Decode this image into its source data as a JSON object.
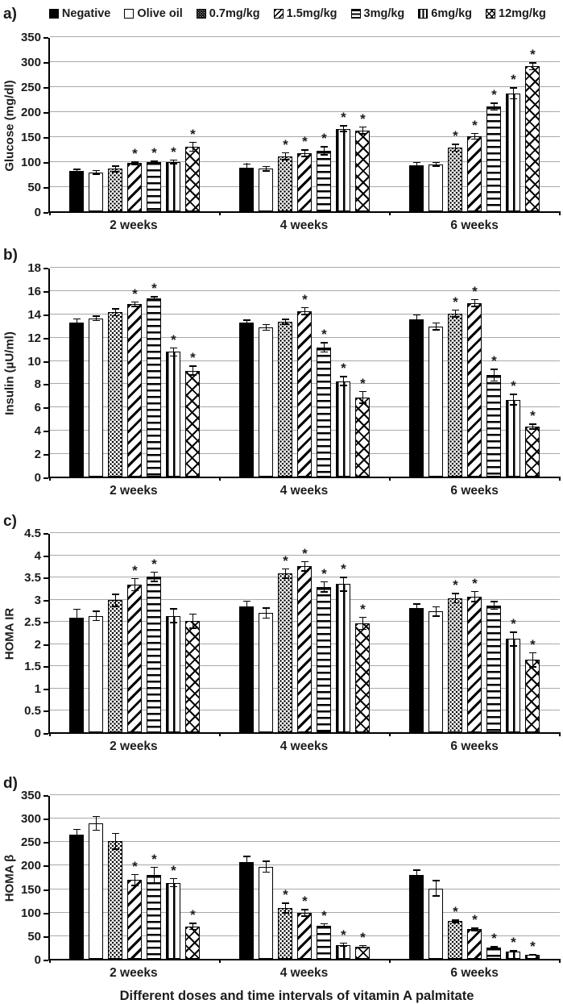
{
  "page": {
    "bottom_title": "Different doses and time intervals of vitamin A palmitate",
    "background": "#ffffff",
    "bar_color": "#000000",
    "gridline_color": "#a9a9a9",
    "sig_marker": "*"
  },
  "legend": {
    "items": [
      {
        "label": "Negative",
        "pattern": "solid"
      },
      {
        "label": "Olive oil",
        "pattern": "open"
      },
      {
        "label": "0.7mg/kg",
        "pattern": "dots"
      },
      {
        "label": "1.5mg/kg",
        "pattern": "diag"
      },
      {
        "label": "3mg/kg",
        "pattern": "hlines"
      },
      {
        "label": "6mg/kg",
        "pattern": "vlines"
      },
      {
        "label": "12mg/kg",
        "pattern": "cross"
      }
    ]
  },
  "chart_data": [
    {
      "panel": "a)",
      "type": "bar",
      "ylabel": "Glucose (mg/dl)",
      "ylim": [
        0,
        350
      ],
      "ytick_step": 50,
      "yticks": [
        "0",
        "50",
        "100",
        "150",
        "200",
        "250",
        "300",
        "350"
      ],
      "categories": [
        "2 weeks",
        "4 weeks",
        "6 weeks"
      ],
      "grid": true,
      "legend_position": "top",
      "series": [
        {
          "name": "Negative",
          "pattern": "solid",
          "values": [
            80,
            87,
            92
          ],
          "errors": [
            5,
            9,
            7
          ],
          "sig": [
            false,
            false,
            false
          ]
        },
        {
          "name": "Olive oil",
          "pattern": "open",
          "values": [
            78,
            85,
            94
          ],
          "errors": [
            5,
            6,
            5
          ],
          "sig": [
            false,
            false,
            false
          ]
        },
        {
          "name": "0.7mg/kg",
          "pattern": "dots",
          "values": [
            85,
            110,
            127
          ],
          "errors": [
            7,
            8,
            8
          ],
          "sig": [
            false,
            true,
            true
          ]
        },
        {
          "name": "1.5mg/kg",
          "pattern": "diag",
          "values": [
            96,
            116,
            150
          ],
          "errors": [
            4,
            8,
            7
          ],
          "sig": [
            true,
            true,
            true
          ]
        },
        {
          "name": "3mg/kg",
          "pattern": "hlines",
          "values": [
            98,
            121,
            209
          ],
          "errors": [
            3,
            9,
            8
          ],
          "sig": [
            true,
            true,
            true
          ]
        },
        {
          "name": "6mg/kg",
          "pattern": "vlines",
          "values": [
            99,
            165,
            236
          ],
          "errors": [
            5,
            7,
            12
          ],
          "sig": [
            true,
            true,
            true
          ]
        },
        {
          "name": "12mg/kg",
          "pattern": "cross",
          "values": [
            129,
            162,
            290
          ],
          "errors": [
            10,
            8,
            8
          ],
          "sig": [
            true,
            true,
            true
          ]
        }
      ]
    },
    {
      "panel": "b)",
      "type": "bar",
      "ylabel": "Insulin (µU/ml)",
      "ylim": [
        0,
        18
      ],
      "ytick_step": 2,
      "yticks": [
        "0",
        "2",
        "4",
        "6",
        "8",
        "10",
        "12",
        "14",
        "16",
        "18"
      ],
      "categories": [
        "2 weeks",
        "4 weeks",
        "6 weeks"
      ],
      "grid": true,
      "legend_position": "none",
      "series": [
        {
          "name": "Negative",
          "pattern": "solid",
          "values": [
            13.2,
            13.2,
            13.5
          ],
          "errors": [
            0.4,
            0.3,
            0.45
          ],
          "sig": [
            false,
            false,
            false
          ]
        },
        {
          "name": "Olive oil",
          "pattern": "open",
          "values": [
            13.6,
            12.8,
            12.9
          ],
          "errors": [
            0.25,
            0.3,
            0.35
          ],
          "sig": [
            false,
            false,
            false
          ]
        },
        {
          "name": "0.7mg/kg",
          "pattern": "dots",
          "values": [
            14.1,
            13.3,
            14.0
          ],
          "errors": [
            0.35,
            0.25,
            0.35
          ],
          "sig": [
            false,
            false,
            true
          ]
        },
        {
          "name": "1.5mg/kg",
          "pattern": "diag",
          "values": [
            14.8,
            14.2,
            14.9
          ],
          "errors": [
            0.25,
            0.35,
            0.35
          ],
          "sig": [
            true,
            true,
            true
          ]
        },
        {
          "name": "3mg/kg",
          "pattern": "hlines",
          "values": [
            15.3,
            11.1,
            8.7
          ],
          "errors": [
            0.2,
            0.45,
            0.55
          ],
          "sig": [
            true,
            true,
            true
          ]
        },
        {
          "name": "6mg/kg",
          "pattern": "vlines",
          "values": [
            10.7,
            8.2,
            6.6
          ],
          "errors": [
            0.4,
            0.45,
            0.5
          ],
          "sig": [
            true,
            true,
            true
          ]
        },
        {
          "name": "12mg/kg",
          "pattern": "cross",
          "values": [
            9.1,
            6.8,
            4.3
          ],
          "errors": [
            0.45,
            0.55,
            0.25
          ],
          "sig": [
            true,
            true,
            true
          ]
        }
      ]
    },
    {
      "panel": "c)",
      "type": "bar",
      "ylabel": "HOMA IR",
      "ylim": [
        0,
        4.5
      ],
      "ytick_step": 0.5,
      "yticks": [
        "0",
        "0.5",
        "1",
        "1.5",
        "2",
        "2.5",
        "3",
        "3.5",
        "4",
        "4.5"
      ],
      "categories": [
        "2 weeks",
        "4 weeks",
        "6 weeks"
      ],
      "grid": true,
      "legend_position": "none",
      "series": [
        {
          "name": "Negative",
          "pattern": "solid",
          "values": [
            2.58,
            2.83,
            2.8
          ],
          "errors": [
            0.2,
            0.13,
            0.1
          ],
          "sig": [
            false,
            false,
            false
          ]
        },
        {
          "name": "Olive oil",
          "pattern": "open",
          "values": [
            2.62,
            2.68,
            2.72
          ],
          "errors": [
            0.12,
            0.13,
            0.12
          ],
          "sig": [
            false,
            false,
            false
          ]
        },
        {
          "name": "0.7mg/kg",
          "pattern": "dots",
          "values": [
            2.97,
            3.57,
            3.02
          ],
          "errors": [
            0.15,
            0.12,
            0.12
          ],
          "sig": [
            false,
            true,
            true
          ]
        },
        {
          "name": "1.5mg/kg",
          "pattern": "diag",
          "values": [
            3.32,
            3.73,
            3.05
          ],
          "errors": [
            0.15,
            0.12,
            0.13
          ],
          "sig": [
            true,
            true,
            true
          ]
        },
        {
          "name": "3mg/kg",
          "pattern": "hlines",
          "values": [
            3.5,
            3.27,
            2.85
          ],
          "errors": [
            0.12,
            0.13,
            0.1
          ],
          "sig": [
            true,
            true,
            false
          ]
        },
        {
          "name": "6mg/kg",
          "pattern": "vlines",
          "values": [
            2.62,
            3.33,
            2.1
          ],
          "errors": [
            0.17,
            0.17,
            0.17
          ],
          "sig": [
            false,
            true,
            true
          ]
        },
        {
          "name": "12mg/kg",
          "pattern": "cross",
          "values": [
            2.5,
            2.45,
            1.63
          ],
          "errors": [
            0.17,
            0.15,
            0.17
          ],
          "sig": [
            false,
            true,
            true
          ]
        }
      ]
    },
    {
      "panel": "d)",
      "type": "bar",
      "ylabel": "HOMA β",
      "ylim": [
        0,
        350
      ],
      "ytick_step": 50,
      "yticks": [
        "0",
        "50",
        "100",
        "150",
        "200",
        "250",
        "300",
        "350"
      ],
      "categories": [
        "2 weeks",
        "4 weeks",
        "6 weeks"
      ],
      "grid": true,
      "legend_position": "none",
      "series": [
        {
          "name": "Negative",
          "pattern": "solid",
          "values": [
            265,
            206,
            178
          ],
          "errors": [
            12,
            13,
            12
          ],
          "sig": [
            false,
            false,
            false
          ]
        },
        {
          "name": "Olive oil",
          "pattern": "open",
          "values": [
            288,
            196,
            150
          ],
          "errors": [
            16,
            13,
            18
          ],
          "sig": [
            false,
            false,
            false
          ]
        },
        {
          "name": "0.7mg/kg",
          "pattern": "dots",
          "values": [
            250,
            108,
            80
          ],
          "errors": [
            18,
            12,
            4
          ],
          "sig": [
            false,
            true,
            true
          ]
        },
        {
          "name": "1.5mg/kg",
          "pattern": "diag",
          "values": [
            168,
            98,
            63
          ],
          "errors": [
            13,
            8,
            4
          ],
          "sig": [
            true,
            true,
            true
          ]
        },
        {
          "name": "3mg/kg",
          "pattern": "hlines",
          "values": [
            178,
            71,
            24
          ],
          "errors": [
            18,
            5,
            3
          ],
          "sig": [
            true,
            true,
            true
          ]
        },
        {
          "name": "6mg/kg",
          "pattern": "vlines",
          "values": [
            162,
            30,
            16
          ],
          "errors": [
            10,
            5,
            3
          ],
          "sig": [
            true,
            true,
            true
          ]
        },
        {
          "name": "12mg/kg",
          "pattern": "cross",
          "values": [
            69,
            26,
            9
          ],
          "errors": [
            8,
            4,
            2
          ],
          "sig": [
            true,
            true,
            true
          ]
        }
      ]
    }
  ]
}
